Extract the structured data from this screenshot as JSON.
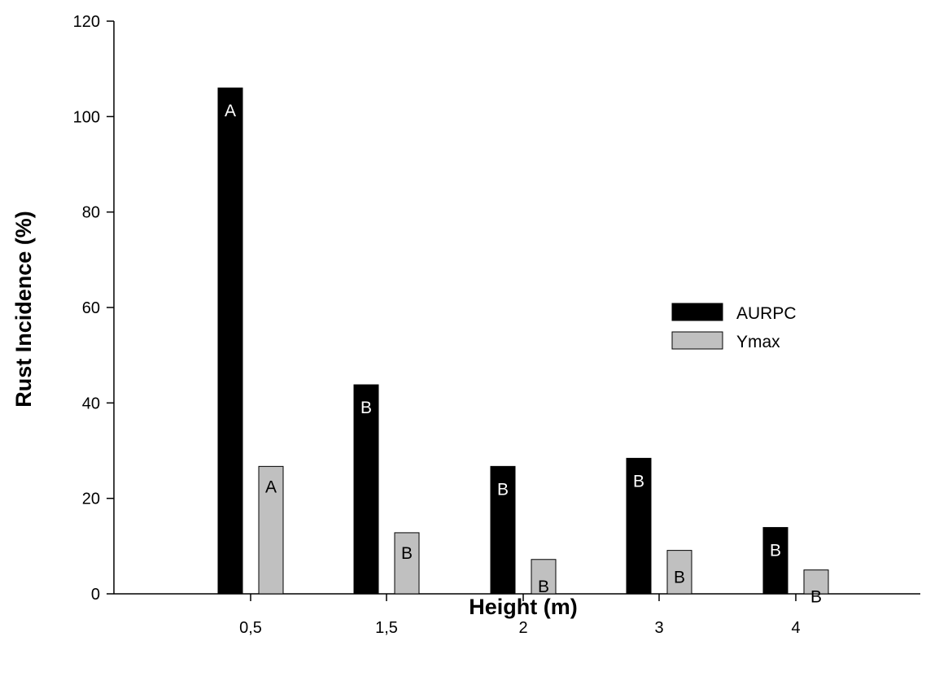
{
  "chart_data": {
    "type": "bar",
    "title": "",
    "xlabel": "Height (m)",
    "ylabel": "Rust Incidence (%)",
    "categories": [
      "0,5",
      "1,5",
      "2",
      "3",
      "4"
    ],
    "ylim": [
      0,
      120
    ],
    "yticks": [
      0,
      20,
      40,
      60,
      80,
      100,
      120
    ],
    "series": [
      {
        "name": "AURPC",
        "color": "#000000",
        "values": [
          106,
          43.8,
          26.7,
          28.4,
          13.9
        ],
        "labels": [
          "A",
          "B",
          "B",
          "B",
          "B"
        ]
      },
      {
        "name": "Ymax",
        "color": "#c0c0c0",
        "values": [
          26.7,
          12.8,
          7.2,
          9.1,
          5.0
        ],
        "labels": [
          "A",
          "B",
          "B",
          "B",
          "B"
        ]
      }
    ],
    "legend_position": "right",
    "grid": false
  }
}
